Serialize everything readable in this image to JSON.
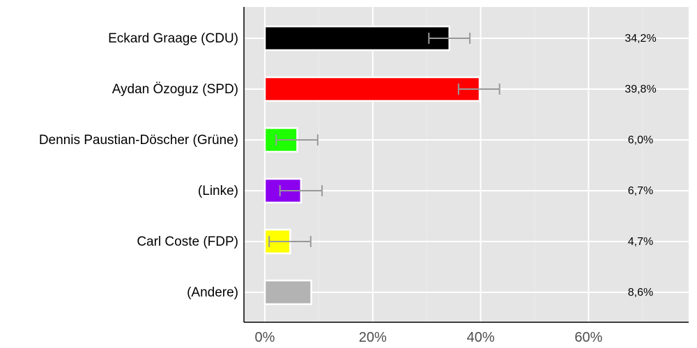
{
  "chart_data": {
    "type": "bar",
    "orientation": "horizontal",
    "title": "",
    "xlabel": "",
    "ylabel": "",
    "xlim": [
      -3.8,
      78.5
    ],
    "x_ticks": [
      0,
      20,
      40,
      60
    ],
    "x_tick_labels": [
      "0%",
      "20%",
      "40%",
      "60%"
    ],
    "grid": true,
    "legend": null,
    "categories": [
      "Eckard Graage (CDU)",
      "Aydan Özoguz (SPD)",
      "Dennis Paustian-Döscher (Grüne)",
      "(Linke)",
      "Carl Coste (FDP)",
      "(Andere)"
    ],
    "values": [
      34.2,
      39.8,
      6.0,
      6.7,
      4.7,
      8.6
    ],
    "value_labels": [
      "34,2%",
      "39,8%",
      "6,0%",
      "6,7%",
      "4,7%",
      "8,6%"
    ],
    "colors": [
      "#000000",
      "#ff0000",
      "#1eff00",
      "#8b00ef",
      "#ffff00",
      "#b3b3b3"
    ],
    "error_bars": [
      {
        "low": 30.4,
        "high": 38.0
      },
      {
        "low": 35.9,
        "high": 43.5
      },
      {
        "low": 2.1,
        "high": 9.8
      },
      {
        "low": 2.8,
        "high": 10.6
      },
      {
        "low": 0.8,
        "high": 8.5
      },
      null
    ]
  }
}
